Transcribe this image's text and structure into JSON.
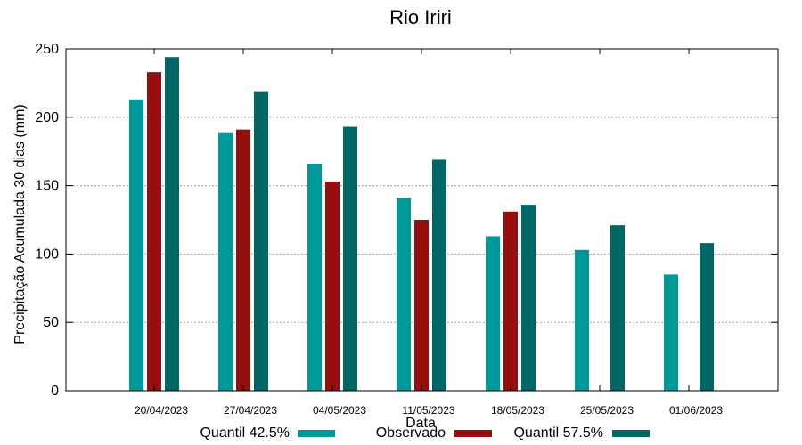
{
  "chart_data": {
    "type": "bar",
    "title": "Rio Iriri",
    "xlabel": "Data",
    "ylabel": "Precipitação Acumulada 30 dias (mm)",
    "ylim": [
      0,
      250
    ],
    "yticks": [
      0,
      50,
      100,
      150,
      200,
      250
    ],
    "grid": true,
    "legend_position": "bottom",
    "categories": [
      "20/04/2023",
      "27/04/2023",
      "04/05/2023",
      "11/05/2023",
      "18/05/2023",
      "25/05/2023",
      "01/06/2023"
    ],
    "series": [
      {
        "name": "Quantil 42.5%",
        "color": "#009999",
        "values": [
          213,
          189,
          166,
          141,
          113,
          103,
          85
        ]
      },
      {
        "name": "Observado",
        "color": "#960f0f",
        "values": [
          233,
          191,
          153,
          125,
          131,
          null,
          null
        ]
      },
      {
        "name": "Quantil 57.5%",
        "color": "#006666",
        "values": [
          244,
          219,
          193,
          169,
          136,
          121,
          108
        ]
      }
    ]
  }
}
